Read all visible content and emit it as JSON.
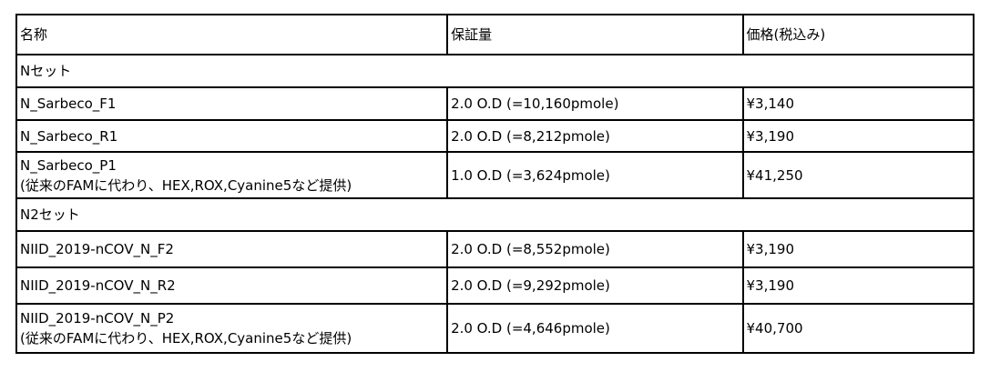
{
  "headers": [
    "名称",
    "保証量",
    "価格(税込み)"
  ],
  "groups": [
    {
      "label": "Nセット",
      "rows": [
        {
          "name": "N_Sarbeco_F1",
          "note": "",
          "amount": "2.0 O.D (=10,160pmole)",
          "price": "¥3,140"
        },
        {
          "name": "N_Sarbeco_R1",
          "note": "",
          "amount": "2.0 O.D (=8,212pmole)",
          "price": "¥3,190"
        },
        {
          "name": "N_Sarbeco_P1",
          "note": "(従来のFAMに代わり、HEX,ROX,Cyanine5など提供)",
          "amount": "1.0 O.D (=3,624pmole)",
          "price": "¥41,250"
        }
      ]
    },
    {
      "label": "N2セット",
      "rows": [
        {
          "name": "NIID_2019-nCOV_N_F2",
          "note": "",
          "amount": "2.0 O.D (=8,552pmole)",
          "price": "¥3,190"
        },
        {
          "name": "NIID_2019-nCOV_N_R2",
          "note": "",
          "amount": "2.0 O.D (=9,292pmole)",
          "price": "¥3,190"
        },
        {
          "name": "NIID_2019-nCOV_N_P2",
          "note": "(従来のFAMに代わり、HEX,ROX,Cyanine5など提供)",
          "amount": "2.0 O.D (=4,646pmole)",
          "price": "¥40,700"
        }
      ]
    }
  ]
}
